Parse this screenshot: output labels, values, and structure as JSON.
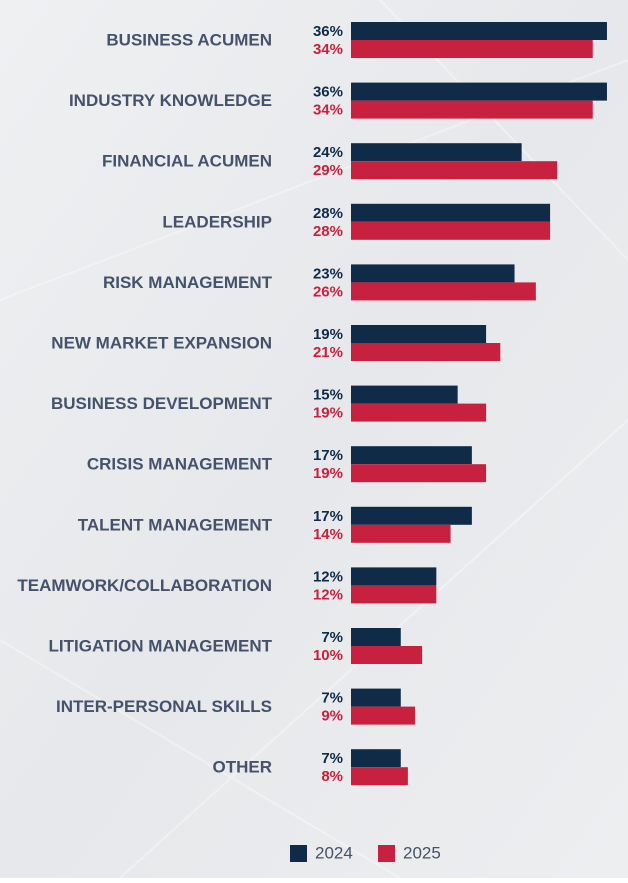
{
  "chart_data": {
    "type": "bar",
    "orientation": "horizontal",
    "categories": [
      "BUSINESS ACUMEN",
      "INDUSTRY KNOWLEDGE",
      "FINANCIAL ACUMEN",
      "LEADERSHIP",
      "RISK MANAGEMENT",
      "NEW MARKET EXPANSION",
      "BUSINESS DEVELOPMENT",
      "CRISIS MANAGEMENT",
      "TALENT MANAGEMENT",
      "TEAMWORK/COLLABORATION",
      "LITIGATION MANAGEMENT",
      "INTER-PERSONAL SKILLS",
      "OTHER"
    ],
    "series": [
      {
        "name": "2024",
        "color": "#0f2b47",
        "values": [
          36,
          36,
          24,
          28,
          23,
          19,
          15,
          17,
          17,
          12,
          7,
          7,
          7
        ],
        "value_labels": [
          "36%",
          "36%",
          "24%",
          "28%",
          "23%",
          "19%",
          "15%",
          "17%",
          "17%",
          "12%",
          "7%",
          "7%",
          "7%"
        ]
      },
      {
        "name": "2025",
        "color": "#c8213f",
        "values": [
          34,
          34,
          29,
          28,
          26,
          21,
          19,
          19,
          14,
          12,
          10,
          9,
          8
        ],
        "value_labels": [
          "34%",
          "34%",
          "29%",
          "28%",
          "26%",
          "21%",
          "19%",
          "19%",
          "14%",
          "12%",
          "10%",
          "9%",
          "8%"
        ]
      }
    ],
    "legend": "bottom"
  }
}
